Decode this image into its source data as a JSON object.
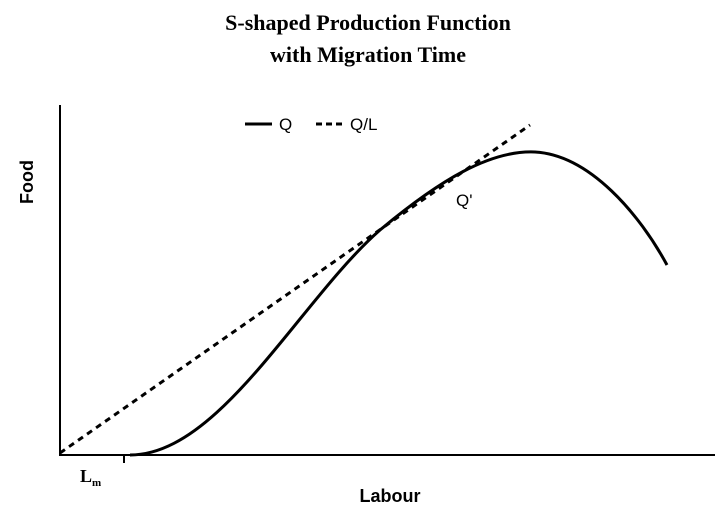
{
  "title": [
    "S-shaped Production Function",
    "with Migration Time"
  ],
  "y_axis_label": "Food",
  "x_axis_label": "Labour",
  "legend": [
    "Q",
    "Q/L"
  ],
  "annotation": "Q'",
  "x_marker": {
    "text": "L",
    "subscript": "m"
  }
}
